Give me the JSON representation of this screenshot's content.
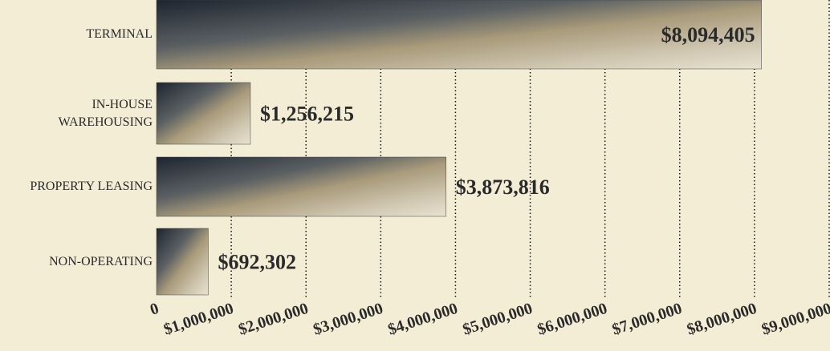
{
  "chart_data": {
    "type": "bar",
    "orientation": "horizontal",
    "categories": [
      "TERMINAL",
      "IN-HOUSE\nWAREHOUSING",
      "PROPERTY LEASING",
      "NON-OPERATING"
    ],
    "values": [
      8094405,
      1256215,
      3873816,
      692302
    ],
    "value_labels": [
      "$8,094,405",
      "$1,256,215",
      "$3,873,816",
      "$692,302"
    ],
    "color": "#3a4048",
    "xlim": [
      0,
      9000000
    ],
    "xticks": [
      0,
      {
        "value": 1000000,
        "label": "$1,000,000"
      },
      {
        "value": 2000000,
        "label": "$2,000,000"
      },
      {
        "value": 3000000,
        "label": "$3,000,000"
      },
      {
        "value": 4000000,
        "label": "$4,000,000"
      },
      {
        "value": 5000000,
        "label": "$5,000,000"
      },
      {
        "value": 6000000,
        "label": "$6,000,000"
      },
      {
        "value": 7000000,
        "label": "$7,000,000"
      },
      {
        "value": 8000000,
        "label": "$8,000,000"
      },
      {
        "value": 9000000,
        "label": "$9,000,000"
      }
    ],
    "grid": true
  }
}
